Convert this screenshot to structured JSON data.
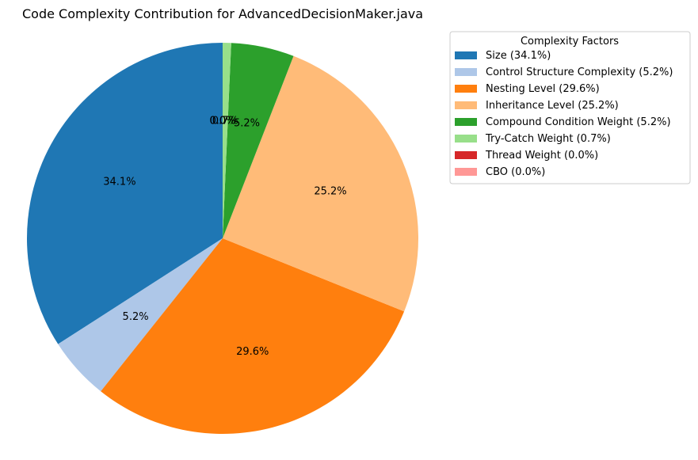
{
  "chart_data": {
    "type": "pie",
    "title": "Code Complexity Contribution for AdvancedDecisionMaker.java",
    "start_angle_deg": 90,
    "direction": "counterclockwise",
    "slices": [
      {
        "label": "Size",
        "value": 34.1,
        "pct_label": "34.1%",
        "legend_label": "Size (34.1%)",
        "color": "#1f77b4"
      },
      {
        "label": "Control Structure Complexity",
        "value": 5.2,
        "pct_label": "5.2%",
        "legend_label": "Control Structure Complexity (5.2%)",
        "color": "#aec7e8"
      },
      {
        "label": "Nesting Level",
        "value": 29.6,
        "pct_label": "29.6%",
        "legend_label": "Nesting Level (29.6%)",
        "color": "#ff7f0e"
      },
      {
        "label": "Inheritance Level",
        "value": 25.2,
        "pct_label": "25.2%",
        "legend_label": "Inheritance Level (25.2%)",
        "color": "#ffbb78"
      },
      {
        "label": "Compound Condition Weight",
        "value": 5.2,
        "pct_label": "5.2%",
        "legend_label": "Compound Condition Weight (5.2%)",
        "color": "#2ca02c"
      },
      {
        "label": "Try-Catch Weight",
        "value": 0.7,
        "pct_label": "0.7%",
        "legend_label": "Try-Catch Weight (0.7%)",
        "color": "#98df8a"
      },
      {
        "label": "Thread Weight",
        "value": 0.0,
        "pct_label": "0.0%",
        "legend_label": "Thread Weight (0.0%)",
        "color": "#d62728"
      },
      {
        "label": "CBO",
        "value": 0.0,
        "pct_label": "0.0%",
        "legend_label": "CBO (0.0%)",
        "color": "#ff9896"
      }
    ],
    "legend": {
      "title": "Complexity Factors",
      "position": "upper-right-outside"
    }
  }
}
